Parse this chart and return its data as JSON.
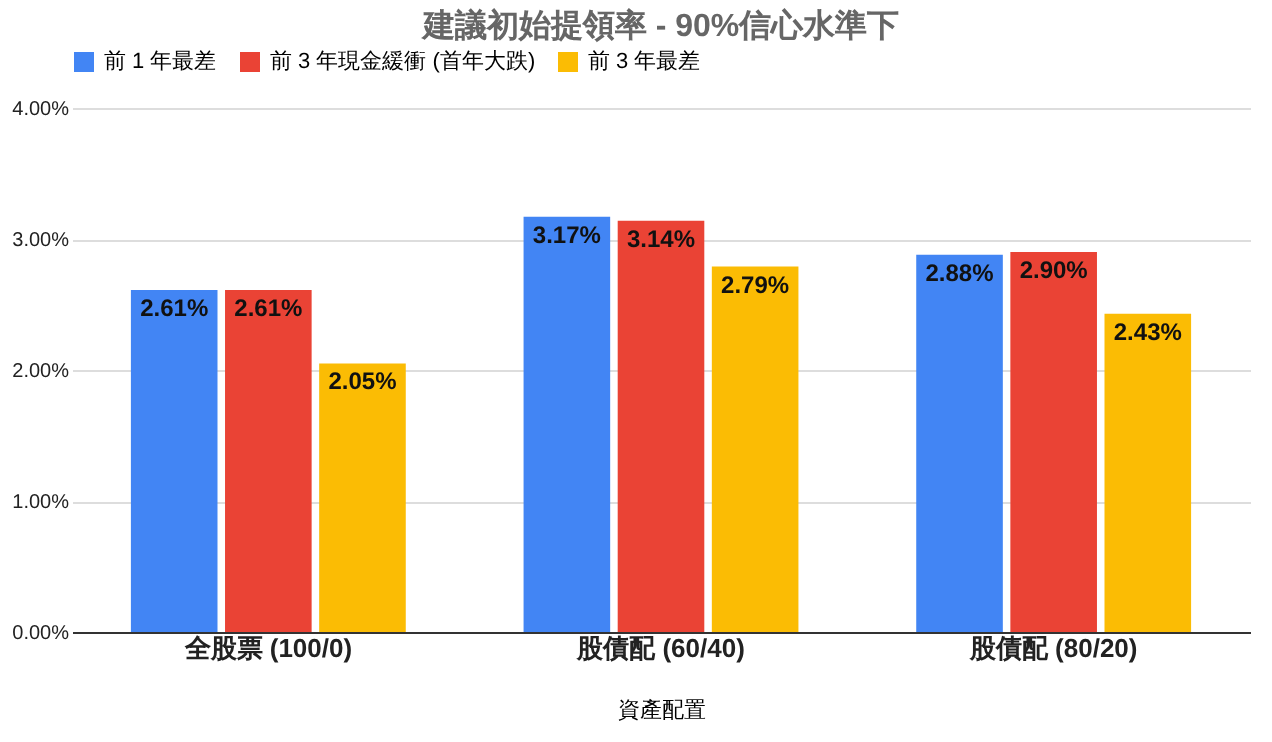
{
  "chart_data": {
    "type": "bar",
    "title": "建議初始提領率 - 90%信心水準下",
    "xlabel": "資產配置",
    "categories": [
      "全股票 (100/0)",
      "股債配 (60/40)",
      "股債配 (80/20)"
    ],
    "series": [
      {
        "name": "前 1 年最差",
        "color": "#4285f4",
        "values": [
          2.61,
          3.17,
          2.88
        ],
        "value_labels": [
          "2.61%",
          "3.17%",
          "2.88%"
        ]
      },
      {
        "name": "前 3 年現金緩衝 (首年大跌)",
        "color": "#ea4335",
        "values": [
          2.61,
          3.14,
          2.9
        ],
        "value_labels": [
          "2.61%",
          "3.14%",
          "2.90%"
        ]
      },
      {
        "name": "前 3 年最差",
        "color": "#fbbc04",
        "values": [
          2.05,
          2.79,
          2.43
        ],
        "value_labels": [
          "2.05%",
          "2.79%",
          "2.43%"
        ]
      }
    ],
    "ylim": [
      0,
      4
    ],
    "yticks": [
      {
        "value": 0,
        "label": "0.00%"
      },
      {
        "value": 1,
        "label": "1.00%"
      },
      {
        "value": 2,
        "label": "2.00%"
      },
      {
        "value": 3,
        "label": "3.00%"
      },
      {
        "value": 4,
        "label": "4.00%"
      }
    ],
    "grid": "y",
    "legend": "top"
  }
}
